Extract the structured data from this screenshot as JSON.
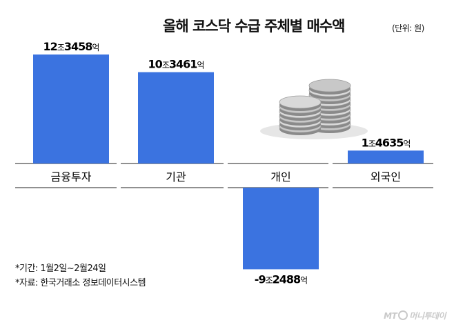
{
  "chart_data": {
    "type": "bar",
    "title": "올해 코스닥 수급 주체별 매수액",
    "unit_note": "(단위: 원)",
    "categories": [
      "금융투자",
      "기관",
      "개인",
      "외국인"
    ],
    "values": [
      123458,
      103461,
      -92488,
      14635
    ],
    "value_unit": "억원",
    "data_labels": [
      "12조3458억",
      "10조3461억",
      "-9조2488억",
      "1조4635억"
    ],
    "label_parts": [
      [
        "12",
        "조",
        "3458",
        "억"
      ],
      [
        "10",
        "조",
        "3461",
        "억"
      ],
      [
        "-9",
        "조",
        "2488",
        "억"
      ],
      [
        "1",
        "조",
        "4635",
        "억"
      ]
    ],
    "bar_color": "#3b73e0",
    "grid": false,
    "legend": "none"
  },
  "notes": {
    "period": "*기간: 1월2일~2월24일",
    "source": "*자료: 한국거래소 정보데이터시스템"
  },
  "credit": {
    "brand": "MT",
    "name": "머니투데이"
  },
  "decoration": {
    "image": "coins-icon"
  }
}
